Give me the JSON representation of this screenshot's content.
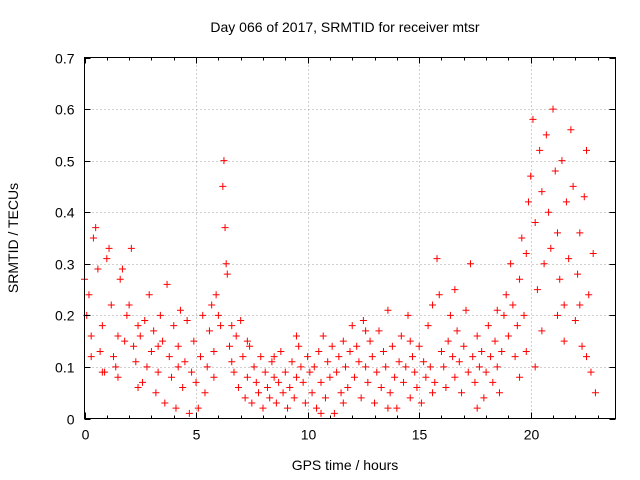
{
  "chart_data": {
    "type": "scatter",
    "title": "Day 066 of 2017, SRMTID for receiver mtsr",
    "xlabel": "GPS time / hours",
    "ylabel": "SRMTID / TECUs",
    "xlim": [
      0,
      23.8
    ],
    "ylim": [
      0,
      0.7
    ],
    "xticks": [
      0,
      5,
      10,
      15,
      20
    ],
    "yticks": [
      0,
      0.1,
      0.2,
      0.3,
      0.4,
      0.5,
      0.6,
      0.7
    ],
    "grid": true,
    "marker": "+",
    "color": "#ff0000",
    "series": [
      {
        "name": "SRMTID",
        "points": [
          [
            0.0,
            0.27
          ],
          [
            0.1,
            0.2
          ],
          [
            0.2,
            0.24
          ],
          [
            0.3,
            0.16
          ],
          [
            0.4,
            0.35
          ],
          [
            0.5,
            0.37
          ],
          [
            0.6,
            0.29
          ],
          [
            0.7,
            0.13
          ],
          [
            0.8,
            0.18
          ],
          [
            0.9,
            0.09
          ],
          [
            1.0,
            0.31
          ],
          [
            1.1,
            0.33
          ],
          [
            1.2,
            0.22
          ],
          [
            1.3,
            0.12
          ],
          [
            1.4,
            0.1
          ],
          [
            1.5,
            0.08
          ],
          [
            1.6,
            0.27
          ],
          [
            1.7,
            0.29
          ],
          [
            1.8,
            0.15
          ],
          [
            1.9,
            0.2
          ],
          [
            2.0,
            0.22
          ],
          [
            2.1,
            0.33
          ],
          [
            2.2,
            0.14
          ],
          [
            2.3,
            0.11
          ],
          [
            2.4,
            0.18
          ],
          [
            2.5,
            0.16
          ],
          [
            2.6,
            0.07
          ],
          [
            2.7,
            0.19
          ],
          [
            2.8,
            0.1
          ],
          [
            2.9,
            0.24
          ],
          [
            3.0,
            0.13
          ],
          [
            3.1,
            0.17
          ],
          [
            3.2,
            0.05
          ],
          [
            3.3,
            0.09
          ],
          [
            3.4,
            0.2
          ],
          [
            3.5,
            0.15
          ],
          [
            3.6,
            0.03
          ],
          [
            3.7,
            0.26
          ],
          [
            3.8,
            0.12
          ],
          [
            3.9,
            0.08
          ],
          [
            4.0,
            0.18
          ],
          [
            4.1,
            0.02
          ],
          [
            4.2,
            0.14
          ],
          [
            4.3,
            0.21
          ],
          [
            4.4,
            0.06
          ],
          [
            4.5,
            0.11
          ],
          [
            4.6,
            0.19
          ],
          [
            4.7,
            0.01
          ],
          [
            4.8,
            0.09
          ],
          [
            4.9,
            0.15
          ],
          [
            5.0,
            0.07
          ],
          [
            5.1,
            0.02
          ],
          [
            5.2,
            0.12
          ],
          [
            5.3,
            0.2
          ],
          [
            5.4,
            0.05
          ],
          [
            5.5,
            0.1
          ],
          [
            5.6,
            0.17
          ],
          [
            5.7,
            0.22
          ],
          [
            5.8,
            0.13
          ],
          [
            5.9,
            0.24
          ],
          [
            6.0,
            0.2
          ],
          [
            6.1,
            0.18
          ],
          [
            6.2,
            0.45
          ],
          [
            6.25,
            0.5
          ],
          [
            6.3,
            0.37
          ],
          [
            6.35,
            0.3
          ],
          [
            6.4,
            0.28
          ],
          [
            6.5,
            0.14
          ],
          [
            6.6,
            0.11
          ],
          [
            6.7,
            0.09
          ],
          [
            6.8,
            0.16
          ],
          [
            6.9,
            0.06
          ],
          [
            7.0,
            0.19
          ],
          [
            7.1,
            0.12
          ],
          [
            7.2,
            0.04
          ],
          [
            7.3,
            0.08
          ],
          [
            7.4,
            0.14
          ],
          [
            7.5,
            0.03
          ],
          [
            7.6,
            0.1
          ],
          [
            7.7,
            0.07
          ],
          [
            7.8,
            0.05
          ],
          [
            7.9,
            0.12
          ],
          [
            8.0,
            0.02
          ],
          [
            8.1,
            0.09
          ],
          [
            8.2,
            0.06
          ],
          [
            8.3,
            0.04
          ],
          [
            8.4,
            0.11
          ],
          [
            8.5,
            0.08
          ],
          [
            8.6,
            0.03
          ],
          [
            8.7,
            0.07
          ],
          [
            8.8,
            0.13
          ],
          [
            8.9,
            0.05
          ],
          [
            9.0,
            0.09
          ],
          [
            9.1,
            0.02
          ],
          [
            9.2,
            0.06
          ],
          [
            9.3,
            0.11
          ],
          [
            9.4,
            0.04
          ],
          [
            9.5,
            0.08
          ],
          [
            9.6,
            0.14
          ],
          [
            9.7,
            0.1
          ],
          [
            9.8,
            0.07
          ],
          [
            9.9,
            0.03
          ],
          [
            10.0,
            0.12
          ],
          [
            10.1,
            0.09
          ],
          [
            10.2,
            0.05
          ],
          [
            10.3,
            0.1
          ],
          [
            10.4,
            0.02
          ],
          [
            10.5,
            0.13
          ],
          [
            10.6,
            0.07
          ],
          [
            10.7,
            0.16
          ],
          [
            10.8,
            0.04
          ],
          [
            10.9,
            0.11
          ],
          [
            11.0,
            0.08
          ],
          [
            11.1,
            0.14
          ],
          [
            11.2,
            0.01
          ],
          [
            11.3,
            0.09
          ],
          [
            11.4,
            0.12
          ],
          [
            11.5,
            0.05
          ],
          [
            11.6,
            0.15
          ],
          [
            11.7,
            0.1
          ],
          [
            11.8,
            0.06
          ],
          [
            11.9,
            0.13
          ],
          [
            12.0,
            0.18
          ],
          [
            12.1,
            0.08
          ],
          [
            12.2,
            0.14
          ],
          [
            12.3,
            0.11
          ],
          [
            12.4,
            0.04
          ],
          [
            12.5,
            0.19
          ],
          [
            12.6,
            0.1
          ],
          [
            12.7,
            0.07
          ],
          [
            12.8,
            0.15
          ],
          [
            12.9,
            0.12
          ],
          [
            13.0,
            0.03
          ],
          [
            13.1,
            0.09
          ],
          [
            13.2,
            0.17
          ],
          [
            13.3,
            0.06
          ],
          [
            13.4,
            0.13
          ],
          [
            13.5,
            0.1
          ],
          [
            13.6,
            0.21
          ],
          [
            13.7,
            0.05
          ],
          [
            13.8,
            0.14
          ],
          [
            13.9,
            0.08
          ],
          [
            14.0,
            0.02
          ],
          [
            14.1,
            0.11
          ],
          [
            14.2,
            0.16
          ],
          [
            14.3,
            0.07
          ],
          [
            14.4,
            0.1
          ],
          [
            14.5,
            0.2
          ],
          [
            14.6,
            0.04
          ],
          [
            14.7,
            0.12
          ],
          [
            14.8,
            0.09
          ],
          [
            14.9,
            0.06
          ],
          [
            15.0,
            0.14
          ],
          [
            15.1,
            0.03
          ],
          [
            15.2,
            0.11
          ],
          [
            15.3,
            0.08
          ],
          [
            15.4,
            0.18
          ],
          [
            15.5,
            0.1
          ],
          [
            15.6,
            0.22
          ],
          [
            15.7,
            0.07
          ],
          [
            15.8,
            0.31
          ],
          [
            15.9,
            0.24
          ],
          [
            16.0,
            0.13
          ],
          [
            16.1,
            0.1
          ],
          [
            16.2,
            0.06
          ],
          [
            16.3,
            0.15
          ],
          [
            16.4,
            0.2
          ],
          [
            16.5,
            0.12
          ],
          [
            16.6,
            0.08
          ],
          [
            16.7,
            0.17
          ],
          [
            16.8,
            0.11
          ],
          [
            16.9,
            0.05
          ],
          [
            17.0,
            0.14
          ],
          [
            17.1,
            0.21
          ],
          [
            17.2,
            0.09
          ],
          [
            17.3,
            0.3
          ],
          [
            17.4,
            0.12
          ],
          [
            17.5,
            0.07
          ],
          [
            17.6,
            0.16
          ],
          [
            17.7,
            0.1
          ],
          [
            17.8,
            0.13
          ],
          [
            17.9,
            0.04
          ],
          [
            18.0,
            0.09
          ],
          [
            18.1,
            0.18
          ],
          [
            18.2,
            0.12
          ],
          [
            18.3,
            0.07
          ],
          [
            18.4,
            0.15
          ],
          [
            18.5,
            0.1
          ],
          [
            18.6,
            0.05
          ],
          [
            18.7,
            0.13
          ],
          [
            18.8,
            0.2
          ],
          [
            18.9,
            0.24
          ],
          [
            19.0,
            0.16
          ],
          [
            19.1,
            0.3
          ],
          [
            19.2,
            0.22
          ],
          [
            19.3,
            0.12
          ],
          [
            19.4,
            0.18
          ],
          [
            19.5,
            0.27
          ],
          [
            19.6,
            0.35
          ],
          [
            19.7,
            0.2
          ],
          [
            19.8,
            0.32
          ],
          [
            19.9,
            0.42
          ],
          [
            20.0,
            0.47
          ],
          [
            20.1,
            0.58
          ],
          [
            20.2,
            0.38
          ],
          [
            20.3,
            0.25
          ],
          [
            20.4,
            0.52
          ],
          [
            20.5,
            0.44
          ],
          [
            20.6,
            0.3
          ],
          [
            20.7,
            0.55
          ],
          [
            20.8,
            0.4
          ],
          [
            20.9,
            0.33
          ],
          [
            21.0,
            0.6
          ],
          [
            21.1,
            0.48
          ],
          [
            21.2,
            0.36
          ],
          [
            21.3,
            0.27
          ],
          [
            21.4,
            0.5
          ],
          [
            21.5,
            0.22
          ],
          [
            21.6,
            0.42
          ],
          [
            21.7,
            0.31
          ],
          [
            21.8,
            0.56
          ],
          [
            21.9,
            0.45
          ],
          [
            22.0,
            0.19
          ],
          [
            22.1,
            0.28
          ],
          [
            22.2,
            0.36
          ],
          [
            22.3,
            0.14
          ],
          [
            22.4,
            0.43
          ],
          [
            22.5,
            0.52
          ],
          [
            22.6,
            0.24
          ],
          [
            22.7,
            0.09
          ],
          [
            22.8,
            0.32
          ],
          [
            22.9,
            0.05
          ],
          [
            0.3,
            0.12
          ],
          [
            0.8,
            0.09
          ],
          [
            1.5,
            0.16
          ],
          [
            2.4,
            0.06
          ],
          [
            3.3,
            0.14
          ],
          [
            4.2,
            0.1
          ],
          [
            5.8,
            0.08
          ],
          [
            6.6,
            0.18
          ],
          [
            7.3,
            0.15
          ],
          [
            8.5,
            0.12
          ],
          [
            9.5,
            0.16
          ],
          [
            10.6,
            0.01
          ],
          [
            11.6,
            0.03
          ],
          [
            12.6,
            0.17
          ],
          [
            13.6,
            0.02
          ],
          [
            14.6,
            0.15
          ],
          [
            15.6,
            0.05
          ],
          [
            16.6,
            0.25
          ],
          [
            17.6,
            0.02
          ],
          [
            18.5,
            0.21
          ],
          [
            19.5,
            0.08
          ],
          [
            20.5,
            0.17
          ],
          [
            21.5,
            0.15
          ],
          [
            22.5,
            0.12
          ],
          [
            19.8,
            0.13
          ],
          [
            20.2,
            0.1
          ],
          [
            21.2,
            0.2
          ],
          [
            22.2,
            0.22
          ]
        ]
      }
    ]
  }
}
